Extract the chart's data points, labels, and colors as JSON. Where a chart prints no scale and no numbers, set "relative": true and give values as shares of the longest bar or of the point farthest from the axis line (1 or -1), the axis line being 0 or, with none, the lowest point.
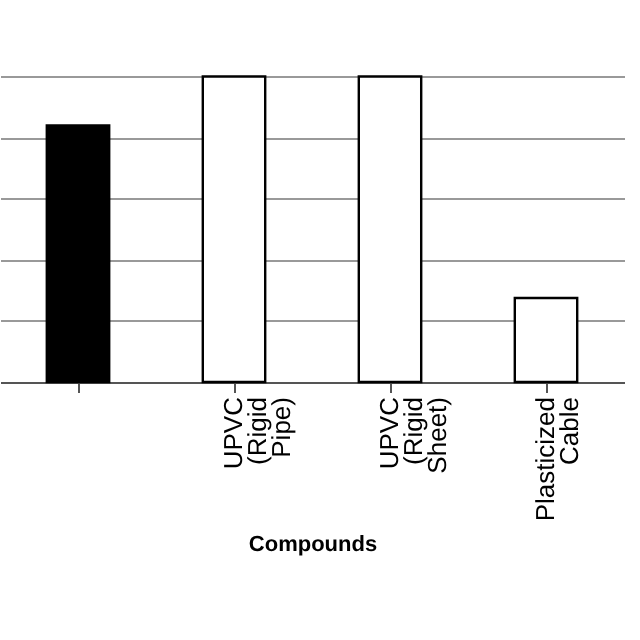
{
  "chart_data": {
    "type": "bar",
    "xlabel": "Compounds",
    "categories": [
      null,
      "UPVC (Rigid Pipe)",
      "UPVC (Rigid Sheet)",
      "Plasticized Cable"
    ],
    "values": [
      0.84,
      1,
      1,
      0.275
    ],
    "colors": [
      "#000000",
      "#ffffff",
      "#ffffff",
      "#ffffff"
    ],
    "relative": true,
    "grid": "y"
  }
}
